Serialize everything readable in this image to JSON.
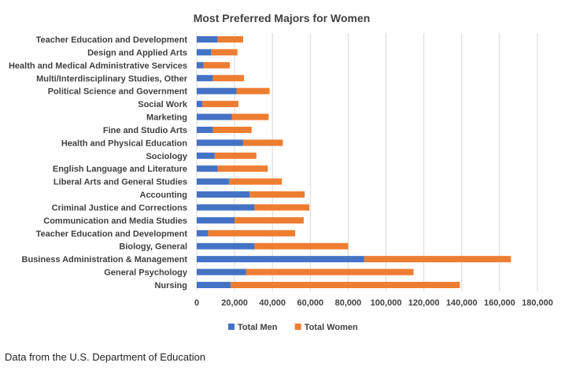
{
  "chart_data": {
    "type": "bar",
    "orientation": "horizontal",
    "stacked": true,
    "title": "Most Preferred Majors for Women",
    "categories": [
      "Teacher Education and Development",
      "Design and Applied Arts",
      "Health and Medical Administrative Services",
      "Multi/Interdisciplinary Studies, Other",
      "Political Science and Government",
      "Social Work",
      "Marketing",
      "Fine and Studio Arts",
      "Health and Physical Education",
      "Sociology",
      "English Language and Literature",
      "Liberal Arts and General Studies",
      "Accounting",
      "Criminal Justice and Corrections",
      "Communication and Media Studies",
      "Teacher Education and Development",
      "Biology, General",
      "Business Administration & Management",
      "General Psychology",
      "Nursing"
    ],
    "series": [
      {
        "name": "Total Men",
        "color": "#4472c4",
        "values": [
          11000,
          7500,
          3500,
          8500,
          21000,
          3000,
          18500,
          8500,
          24500,
          9500,
          11000,
          17000,
          28000,
          30500,
          20000,
          6000,
          30500,
          88500,
          26000,
          18000
        ]
      },
      {
        "name": "Total Women",
        "color": "#ed7d31",
        "values": [
          13500,
          14000,
          14000,
          16500,
          17500,
          19000,
          19500,
          20500,
          21000,
          22000,
          26500,
          28000,
          29000,
          29000,
          36500,
          46000,
          49500,
          77500,
          88500,
          121000
        ]
      }
    ],
    "x_ticks": [
      "0",
      "20,000",
      "40,000",
      "60,000",
      "80,000",
      "100,000",
      "120,000",
      "140,000",
      "160,000",
      "180,000"
    ],
    "xlim": [
      0,
      180000
    ],
    "grid": true,
    "legend_position": "bottom"
  },
  "source_note": "Data from the U.S. Department of Education"
}
